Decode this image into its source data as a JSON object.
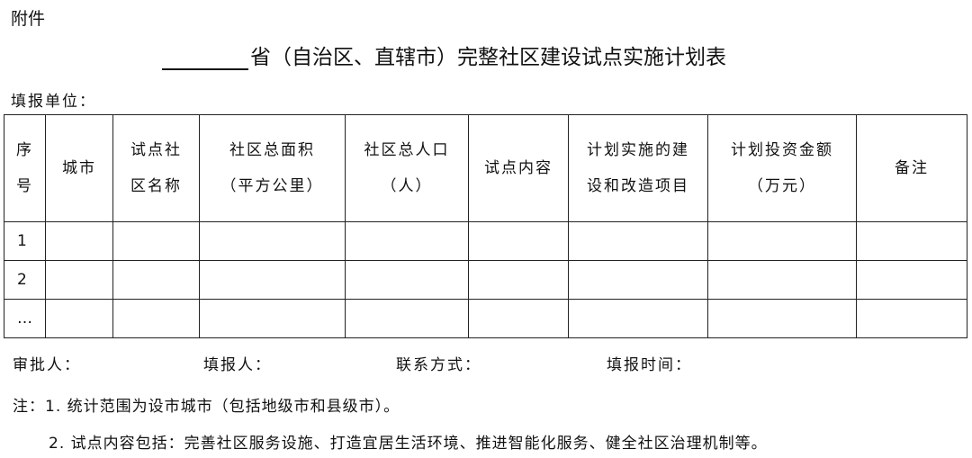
{
  "attachment_label": "附件",
  "title_suffix": "省（自治区、直辖市）完整社区建设试点实施计划表",
  "fill_unit_label": "填报单位：",
  "table": {
    "headers": [
      [
        "序",
        "号"
      ],
      [
        "城市"
      ],
      [
        "试点社",
        "区名称"
      ],
      [
        "社区总面积",
        "（平方公里）"
      ],
      [
        "社区总人口",
        "（人）"
      ],
      [
        "试点内容"
      ],
      [
        "计划实施的建",
        "设和改造项目"
      ],
      [
        "计划投资金额",
        "（万元）"
      ],
      [
        "备注"
      ]
    ],
    "rows": [
      "1",
      "2",
      "…"
    ]
  },
  "footer": {
    "approver": "审批人：",
    "filler": "填报人：",
    "contact": "联系方式：",
    "fill_time": "填报时间："
  },
  "notes": [
    "注：1. 统计范围为设市城市（包括地级市和县级市）。",
    "2. 试点内容包括：完善社区服务设施、打造宜居生活环境、推进智能化服务、健全社区治理机制等。"
  ]
}
